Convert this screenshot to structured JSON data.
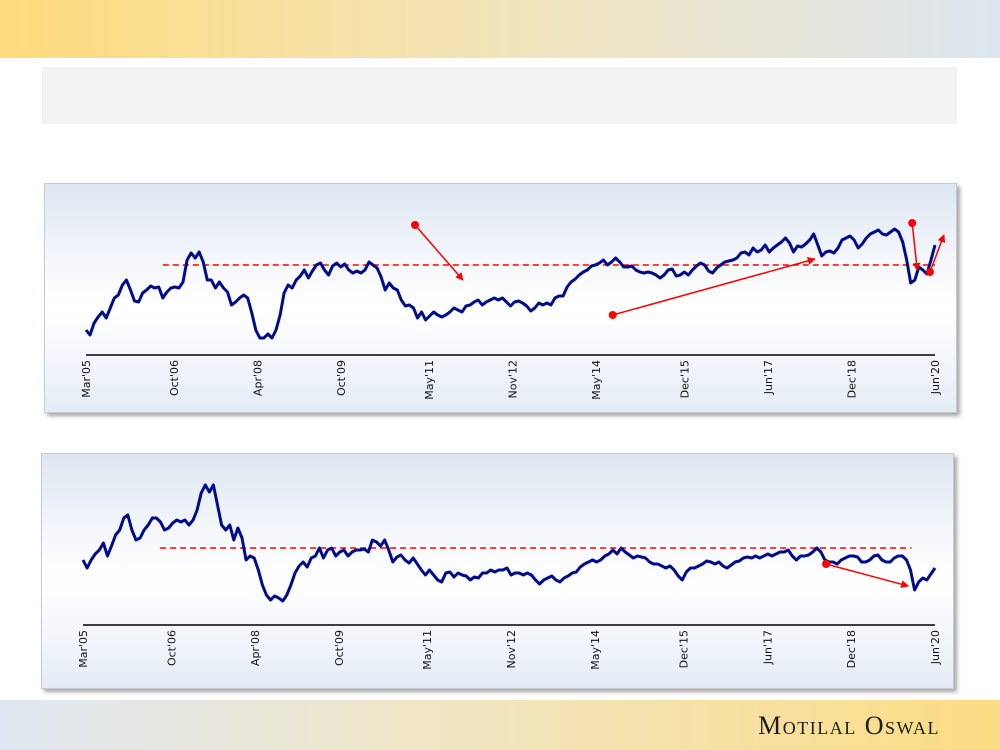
{
  "footer": {
    "logo_text": "Motilal Oswal"
  },
  "colors": {
    "series": "#000c8c",
    "annotation": "#ff0000",
    "axis": "#000000"
  },
  "chart_data": [
    {
      "type": "line",
      "title": "",
      "xlabel": "",
      "ylabel": "",
      "x_range": [
        2005.17,
        2020.42
      ],
      "ylim": [
        -5,
        130
      ],
      "grid": false,
      "x_ticks": [
        {
          "label": "Mar'05",
          "x": 2005.17
        },
        {
          "label": "Oct'06",
          "x": 2006.75
        },
        {
          "label": "Apr'08",
          "x": 2008.25
        },
        {
          "label": "Oct'09",
          "x": 2009.75
        },
        {
          "label": "May'11",
          "x": 2011.33
        },
        {
          "label": "Nov'12",
          "x": 2012.83
        },
        {
          "label": "May'14",
          "x": 2014.33
        },
        {
          "label": "Dec'15",
          "x": 2015.92
        },
        {
          "label": "Jun'17",
          "x": 2017.42
        },
        {
          "label": "Dec'18",
          "x": 2018.92
        },
        {
          "label": "Jun'20",
          "x": 2020.42
        }
      ],
      "series": [
        {
          "name": "series",
          "values": [
            20,
            15,
            27,
            33,
            38,
            32,
            42,
            52,
            55,
            65,
            70,
            60,
            49,
            48,
            57,
            60,
            64,
            62,
            63,
            52,
            58,
            62,
            63,
            62,
            68,
            90,
            97,
            92,
            98,
            88,
            70,
            70,
            62,
            68,
            62,
            58,
            45,
            48,
            52,
            55,
            52,
            37,
            20,
            12,
            12,
            16,
            12,
            20,
            35,
            57,
            65,
            62,
            70,
            74,
            80,
            72,
            79,
            85,
            87,
            80,
            75,
            84,
            87,
            83,
            86,
            80,
            77,
            79,
            77,
            80,
            88,
            85,
            82,
            73,
            60,
            67,
            62,
            60,
            50,
            44,
            45,
            42,
            32,
            38,
            30,
            34,
            38,
            35,
            33,
            35,
            38,
            42,
            40,
            38,
            44,
            45,
            48,
            50,
            45,
            48,
            50,
            52,
            50,
            52,
            48,
            44,
            48,
            49,
            47,
            44,
            39,
            42,
            47,
            45,
            47,
            45,
            52,
            54,
            54,
            63,
            68,
            71,
            75,
            78,
            80,
            84,
            85,
            87,
            90,
            85,
            88,
            92,
            88,
            83,
            83,
            84,
            80,
            78,
            77,
            78,
            77,
            75,
            72,
            75,
            80,
            81,
            74,
            75,
            78,
            75,
            80,
            84,
            87,
            85,
            79,
            77,
            82,
            85,
            88,
            89,
            90,
            92,
            97,
            98,
            95,
            102,
            98,
            100,
            105,
            98,
            102,
            105,
            108,
            112,
            107,
            98,
            104,
            103,
            106,
            110,
            116,
            105,
            94,
            98,
            99,
            97,
            102,
            110,
            112,
            114,
            110,
            102,
            106,
            112,
            116,
            118,
            120,
            116,
            115,
            118,
            121,
            118,
            108,
            90,
            67,
            70,
            83,
            80,
            76,
            90,
            105
          ]
        }
      ],
      "average_line": {
        "value": 85,
        "x_from": 2006.55,
        "x_to": 2020.42,
        "style": "dashed"
      },
      "annotations": [
        {
          "type": "arrow",
          "from": [
            2011.08,
            125
          ],
          "to": [
            2011.94,
            70
          ]
        },
        {
          "type": "arrow",
          "from": [
            2014.63,
            35
          ],
          "to": [
            2018.26,
            91
          ]
        },
        {
          "type": "arrow",
          "from": [
            2020.01,
            127
          ],
          "to": [
            2020.1,
            80
          ]
        },
        {
          "type": "arrow",
          "from": [
            2020.33,
            78
          ],
          "to": [
            2020.58,
            115
          ]
        }
      ]
    },
    {
      "type": "line",
      "title": "",
      "xlabel": "",
      "ylabel": "",
      "x_range": [
        2005.17,
        2020.42
      ],
      "ylim": [
        -5,
        140
      ],
      "grid": false,
      "x_ticks": [
        {
          "label": "Mar'05",
          "x": 2005.17
        },
        {
          "label": "Oct'06",
          "x": 2006.75
        },
        {
          "label": "Apr'08",
          "x": 2008.25
        },
        {
          "label": "Oct'09",
          "x": 2009.75
        },
        {
          "label": "May'11",
          "x": 2011.33
        },
        {
          "label": "Nov'12",
          "x": 2012.83
        },
        {
          "label": "May'14",
          "x": 2014.33
        },
        {
          "label": "Dec'15",
          "x": 2015.92
        },
        {
          "label": "Jun'17",
          "x": 2017.42
        },
        {
          "label": "Dec'18",
          "x": 2018.92
        },
        {
          "label": "Jun'20",
          "x": 2020.42
        }
      ],
      "series": [
        {
          "name": "series",
          "values": [
            60,
            52,
            60,
            66,
            70,
            77,
            64,
            74,
            85,
            90,
            102,
            105,
            90,
            80,
            82,
            90,
            95,
            102,
            102,
            98,
            90,
            92,
            97,
            100,
            98,
            100,
            95,
            100,
            110,
            127,
            135,
            128,
            135,
            115,
            95,
            90,
            95,
            80,
            92,
            82,
            60,
            64,
            62,
            50,
            35,
            25,
            20,
            24,
            22,
            19,
            25,
            35,
            47,
            54,
            58,
            53,
            62,
            64,
            72,
            62,
            70,
            72,
            64,
            68,
            70,
            64,
            68,
            70,
            70,
            71,
            68,
            80,
            78,
            74,
            80,
            70,
            58,
            63,
            65,
            60,
            57,
            62,
            56,
            50,
            45,
            50,
            45,
            40,
            38,
            47,
            48,
            43,
            47,
            45,
            44,
            40,
            43,
            42,
            47,
            47,
            50,
            48,
            50,
            50,
            52,
            45,
            47,
            47,
            45,
            47,
            45,
            40,
            36,
            40,
            42,
            44,
            40,
            38,
            42,
            44,
            47,
            48,
            53,
            56,
            58,
            60,
            58,
            60,
            64,
            66,
            70,
            66,
            72,
            68,
            65,
            62,
            64,
            63,
            62,
            58,
            56,
            56,
            54,
            52,
            54,
            50,
            44,
            40,
            48,
            52,
            52,
            54,
            56,
            59,
            58,
            56,
            58,
            54,
            52,
            55,
            58,
            59,
            62,
            63,
            62,
            64,
            62,
            64,
            66,
            64,
            66,
            68,
            68,
            70,
            64,
            60,
            64,
            64,
            65,
            68,
            72,
            68,
            60,
            58,
            58,
            56,
            60,
            62,
            64,
            64,
            63,
            58,
            58,
            60,
            64,
            65,
            60,
            58,
            58,
            62,
            64,
            64,
            60,
            50,
            30,
            38,
            42,
            40,
            46,
            52
          ]
        }
      ],
      "average_line": {
        "value": 72,
        "x_from": 2006.55,
        "x_to": 2020.0,
        "style": "dashed"
      },
      "annotations": [
        {
          "type": "arrow",
          "from": [
            2018.47,
            56
          ],
          "to": [
            2019.94,
            34
          ]
        }
      ]
    }
  ]
}
